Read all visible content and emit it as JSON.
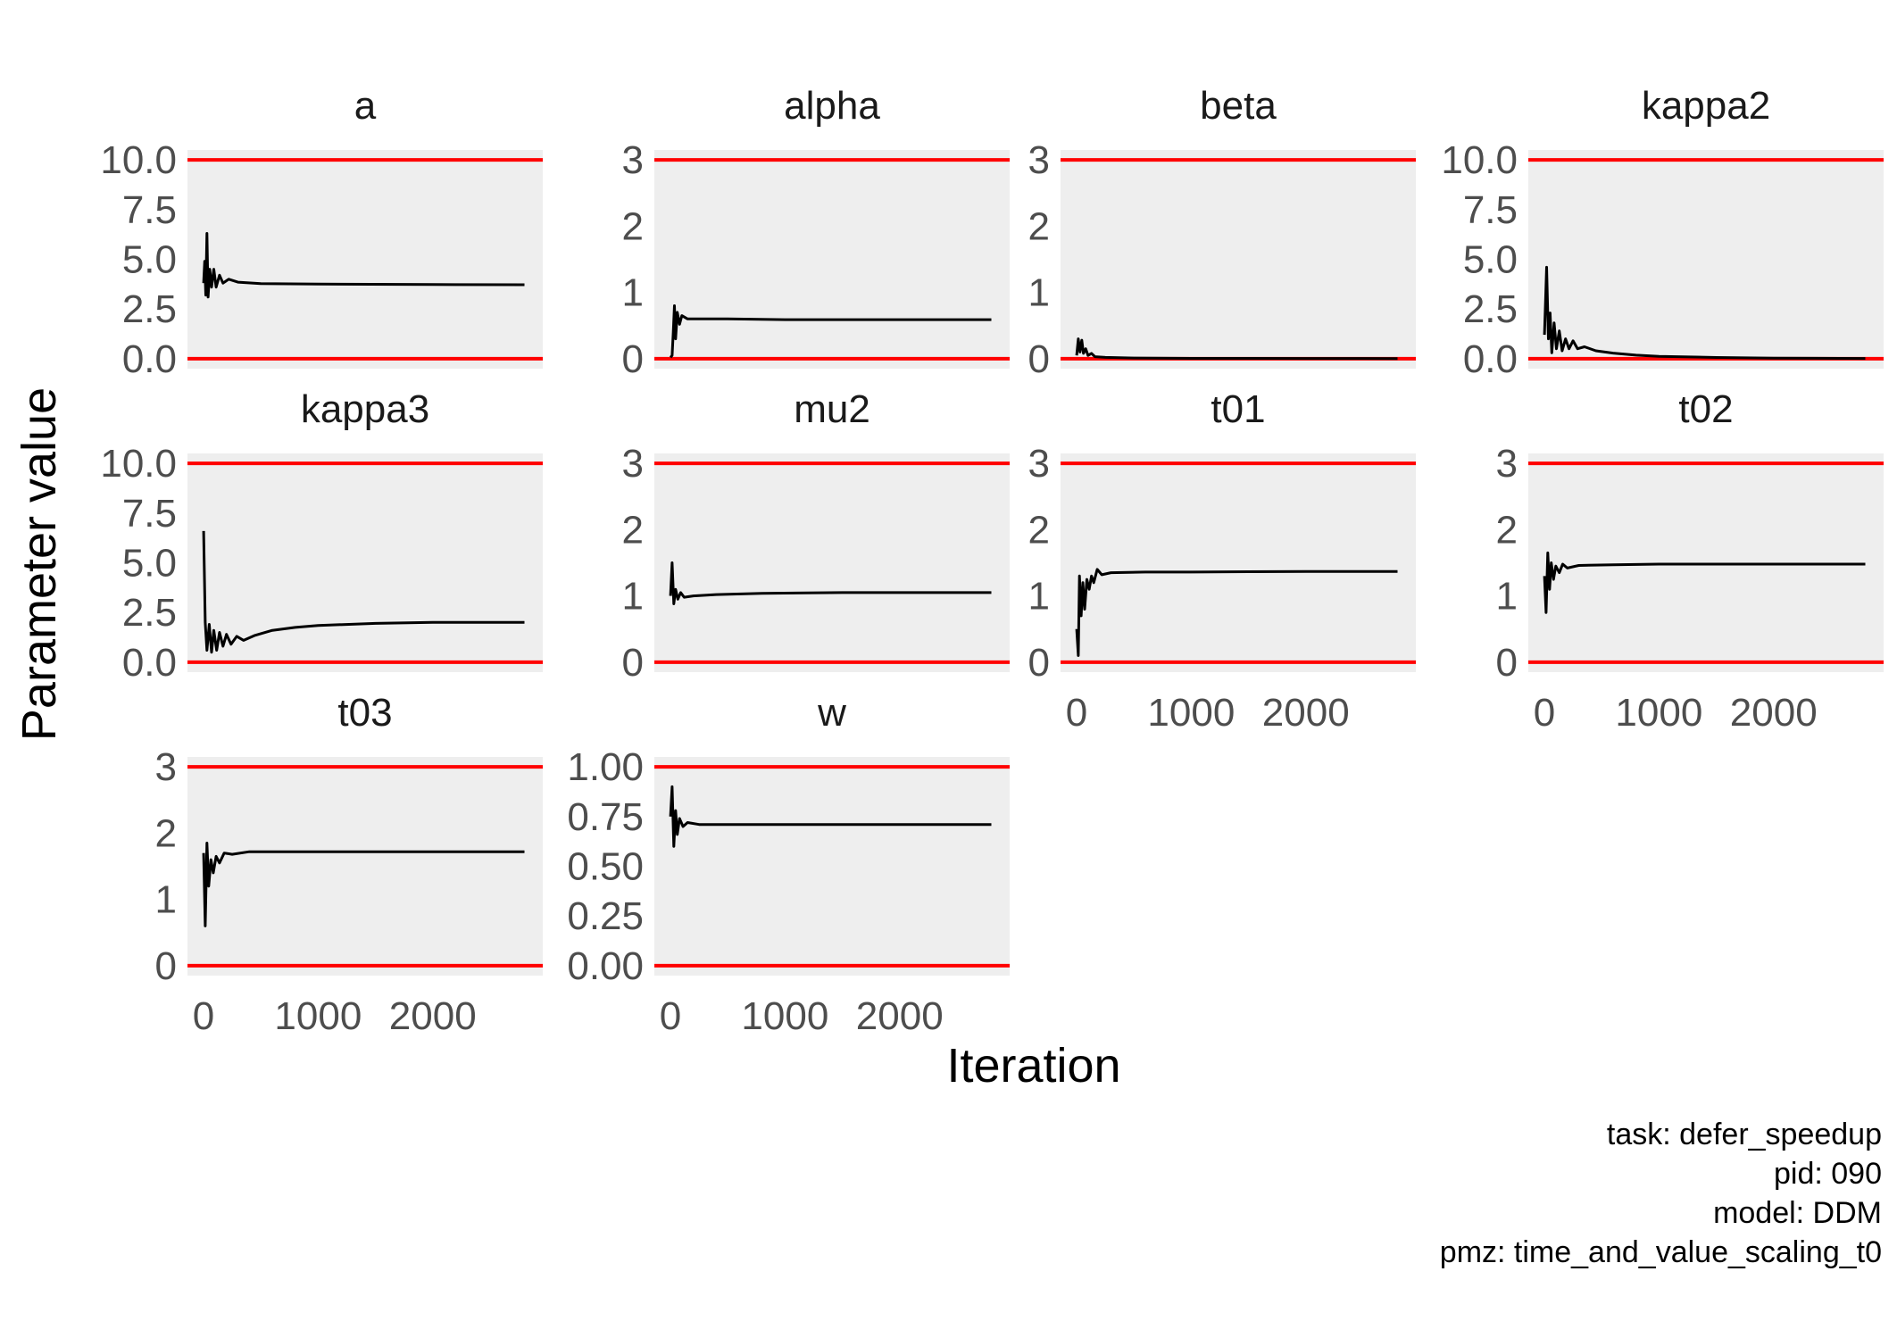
{
  "chart_data": {
    "type": "line",
    "xlabel": "Iteration",
    "ylabel": "Parameter value",
    "caption": [
      "task: defer_speedup",
      "pid: 090",
      "model: DDM",
      "pmz: time_and_value_scaling_t0"
    ],
    "x_ticks": [
      "0",
      "1000",
      "2000"
    ],
    "x_tick_values": [
      0,
      1000,
      2000
    ],
    "xlim": [
      -140,
      2960
    ],
    "n_iterations": 2800,
    "colors": {
      "panel_background": "#eeeeee",
      "bound_line": "#ff0000",
      "trace": "#000000"
    },
    "grid": false,
    "panels": [
      {
        "name": "a",
        "ylim": [
          -0.5,
          10.5
        ],
        "y_ticks": [
          "0.0",
          "2.5",
          "5.0",
          "7.5",
          "10.0"
        ],
        "y_tick_values": [
          0,
          2.5,
          5,
          7.5,
          10
        ],
        "bounds": [
          0,
          10
        ],
        "show_x_ticks": false,
        "trace": [
          [
            1,
            3.8
          ],
          [
            10,
            4.9
          ],
          [
            20,
            3.2
          ],
          [
            30,
            6.3
          ],
          [
            40,
            3.1
          ],
          [
            55,
            4.5
          ],
          [
            70,
            3.6
          ],
          [
            90,
            4.5
          ],
          [
            110,
            3.6
          ],
          [
            140,
            4.2
          ],
          [
            170,
            3.8
          ],
          [
            220,
            4.0
          ],
          [
            300,
            3.85
          ],
          [
            500,
            3.78
          ],
          [
            1000,
            3.75
          ],
          [
            2000,
            3.73
          ],
          [
            2800,
            3.72
          ]
        ]
      },
      {
        "name": "alpha",
        "ylim": [
          -0.15,
          3.15
        ],
        "y_ticks": [
          "0",
          "1",
          "2",
          "3"
        ],
        "y_tick_values": [
          0,
          1,
          2,
          3
        ],
        "bounds": [
          0,
          3
        ],
        "show_x_ticks": false,
        "trace": [
          [
            1,
            0.02
          ],
          [
            15,
            0.05
          ],
          [
            25,
            0.4
          ],
          [
            35,
            0.8
          ],
          [
            45,
            0.3
          ],
          [
            60,
            0.7
          ],
          [
            80,
            0.52
          ],
          [
            100,
            0.65
          ],
          [
            150,
            0.6
          ],
          [
            250,
            0.6
          ],
          [
            500,
            0.6
          ],
          [
            1000,
            0.59
          ],
          [
            2000,
            0.59
          ],
          [
            2800,
            0.59
          ]
        ]
      },
      {
        "name": "beta",
        "ylim": [
          -0.15,
          3.15
        ],
        "y_ticks": [
          "0",
          "1",
          "2",
          "3"
        ],
        "y_tick_values": [
          0,
          1,
          2,
          3
        ],
        "bounds": [
          0,
          3
        ],
        "show_x_ticks": false,
        "trace": [
          [
            1,
            0.05
          ],
          [
            15,
            0.3
          ],
          [
            30,
            0.1
          ],
          [
            45,
            0.28
          ],
          [
            60,
            0.08
          ],
          [
            80,
            0.15
          ],
          [
            100,
            0.05
          ],
          [
            130,
            0.08
          ],
          [
            160,
            0.03
          ],
          [
            250,
            0.02
          ],
          [
            500,
            0.01
          ],
          [
            1000,
            0.005
          ],
          [
            2000,
            0.003
          ],
          [
            2800,
            0.002
          ]
        ]
      },
      {
        "name": "kappa2",
        "ylim": [
          -0.5,
          10.5
        ],
        "y_ticks": [
          "0.0",
          "2.5",
          "5.0",
          "7.5",
          "10.0"
        ],
        "y_tick_values": [
          0,
          2.5,
          5,
          7.5,
          10
        ],
        "bounds": [
          0,
          10
        ],
        "show_x_ticks": false,
        "trace": [
          [
            1,
            1.2
          ],
          [
            20,
            4.6
          ],
          [
            35,
            1.0
          ],
          [
            50,
            2.3
          ],
          [
            65,
            0.3
          ],
          [
            85,
            1.8
          ],
          [
            105,
            0.5
          ],
          [
            130,
            1.4
          ],
          [
            155,
            0.4
          ],
          [
            185,
            1.0
          ],
          [
            215,
            0.5
          ],
          [
            250,
            0.9
          ],
          [
            290,
            0.5
          ],
          [
            350,
            0.6
          ],
          [
            450,
            0.4
          ],
          [
            600,
            0.28
          ],
          [
            800,
            0.18
          ],
          [
            1000,
            0.12
          ],
          [
            1500,
            0.06
          ],
          [
            2000,
            0.03
          ],
          [
            2800,
            0.01
          ]
        ]
      },
      {
        "name": "kappa3",
        "ylim": [
          -0.5,
          10.5
        ],
        "y_ticks": [
          "0.0",
          "2.5",
          "5.0",
          "7.5",
          "10.0"
        ],
        "y_tick_values": [
          0,
          2.5,
          5,
          7.5,
          10
        ],
        "bounds": [
          0,
          10
        ],
        "show_x_ticks": false,
        "trace": [
          [
            1,
            6.6
          ],
          [
            15,
            2.0
          ],
          [
            30,
            0.6
          ],
          [
            50,
            1.9
          ],
          [
            70,
            0.5
          ],
          [
            90,
            1.6
          ],
          [
            115,
            0.6
          ],
          [
            140,
            1.5
          ],
          [
            170,
            0.8
          ],
          [
            200,
            1.4
          ],
          [
            240,
            0.9
          ],
          [
            290,
            1.3
          ],
          [
            350,
            1.1
          ],
          [
            450,
            1.35
          ],
          [
            600,
            1.6
          ],
          [
            800,
            1.75
          ],
          [
            1000,
            1.85
          ],
          [
            1500,
            1.95
          ],
          [
            2000,
            2.0
          ],
          [
            2800,
            2.0
          ]
        ]
      },
      {
        "name": "mu2",
        "ylim": [
          -0.15,
          3.15
        ],
        "y_ticks": [
          "0",
          "1",
          "2",
          "3"
        ],
        "y_tick_values": [
          0,
          1,
          2,
          3
        ],
        "bounds": [
          0,
          3
        ],
        "show_x_ticks": false,
        "trace": [
          [
            1,
            1.0
          ],
          [
            15,
            1.5
          ],
          [
            30,
            0.88
          ],
          [
            45,
            1.1
          ],
          [
            65,
            0.95
          ],
          [
            90,
            1.05
          ],
          [
            120,
            0.98
          ],
          [
            200,
            1.0
          ],
          [
            400,
            1.02
          ],
          [
            800,
            1.04
          ],
          [
            1500,
            1.05
          ],
          [
            2800,
            1.05
          ]
        ]
      },
      {
        "name": "t01",
        "ylim": [
          -0.15,
          3.15
        ],
        "y_ticks": [
          "0",
          "1",
          "2",
          "3"
        ],
        "y_tick_values": [
          0,
          1,
          2,
          3
        ],
        "bounds": [
          0,
          3
        ],
        "show_x_ticks": true,
        "trace": [
          [
            1,
            0.5
          ],
          [
            15,
            0.1
          ],
          [
            25,
            1.3
          ],
          [
            40,
            0.7
          ],
          [
            55,
            1.2
          ],
          [
            70,
            0.8
          ],
          [
            90,
            1.25
          ],
          [
            110,
            1.1
          ],
          [
            130,
            1.3
          ],
          [
            150,
            1.2
          ],
          [
            180,
            1.4
          ],
          [
            220,
            1.32
          ],
          [
            300,
            1.35
          ],
          [
            600,
            1.36
          ],
          [
            1000,
            1.36
          ],
          [
            2000,
            1.37
          ],
          [
            2800,
            1.37
          ]
        ]
      },
      {
        "name": "t02",
        "ylim": [
          -0.15,
          3.15
        ],
        "y_ticks": [
          "0",
          "1",
          "2",
          "3"
        ],
        "y_tick_values": [
          0,
          1,
          2,
          3
        ],
        "bounds": [
          0,
          3
        ],
        "show_x_ticks": true,
        "trace": [
          [
            1,
            1.3
          ],
          [
            15,
            0.75
          ],
          [
            30,
            1.65
          ],
          [
            45,
            1.1
          ],
          [
            60,
            1.5
          ],
          [
            80,
            1.25
          ],
          [
            100,
            1.45
          ],
          [
            130,
            1.35
          ],
          [
            160,
            1.48
          ],
          [
            200,
            1.42
          ],
          [
            300,
            1.46
          ],
          [
            600,
            1.47
          ],
          [
            1000,
            1.48
          ],
          [
            2000,
            1.48
          ],
          [
            2800,
            1.48
          ]
        ]
      },
      {
        "name": "t03",
        "ylim": [
          -0.15,
          3.15
        ],
        "y_ticks": [
          "0",
          "1",
          "2",
          "3"
        ],
        "y_tick_values": [
          0,
          1,
          2,
          3
        ],
        "bounds": [
          0,
          3
        ],
        "show_x_ticks": true,
        "trace": [
          [
            1,
            1.7
          ],
          [
            15,
            0.6
          ],
          [
            30,
            1.85
          ],
          [
            45,
            1.2
          ],
          [
            65,
            1.6
          ],
          [
            85,
            1.4
          ],
          [
            110,
            1.65
          ],
          [
            140,
            1.55
          ],
          [
            180,
            1.7
          ],
          [
            250,
            1.68
          ],
          [
            400,
            1.72
          ],
          [
            1000,
            1.72
          ],
          [
            2000,
            1.72
          ],
          [
            2800,
            1.72
          ]
        ]
      },
      {
        "name": "w",
        "ylim": [
          -0.05,
          1.05
        ],
        "y_ticks": [
          "0.00",
          "0.25",
          "0.50",
          "0.75",
          "1.00"
        ],
        "y_tick_values": [
          0,
          0.25,
          0.5,
          0.75,
          1
        ],
        "bounds": [
          0,
          1
        ],
        "show_x_ticks": true,
        "trace": [
          [
            1,
            0.75
          ],
          [
            15,
            0.9
          ],
          [
            30,
            0.6
          ],
          [
            45,
            0.78
          ],
          [
            60,
            0.66
          ],
          [
            80,
            0.74
          ],
          [
            110,
            0.7
          ],
          [
            150,
            0.72
          ],
          [
            250,
            0.71
          ],
          [
            500,
            0.71
          ],
          [
            1000,
            0.71
          ],
          [
            2000,
            0.71
          ],
          [
            2800,
            0.71
          ]
        ]
      }
    ]
  }
}
